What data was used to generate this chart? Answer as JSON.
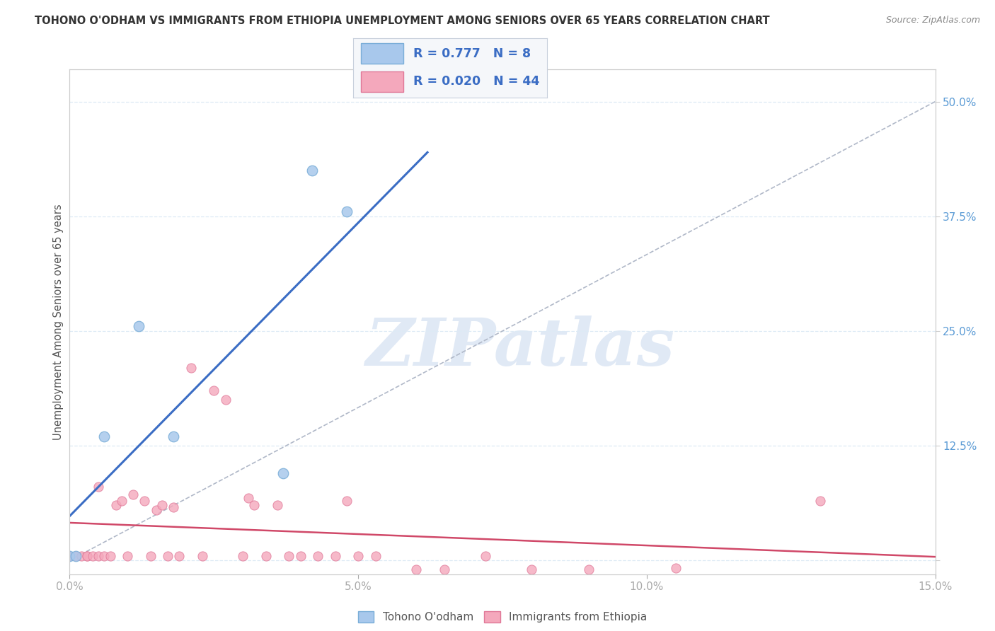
{
  "title": "TOHONO O'ODHAM VS IMMIGRANTS FROM ETHIOPIA UNEMPLOYMENT AMONG SENIORS OVER 65 YEARS CORRELATION CHART",
  "source": "Source: ZipAtlas.com",
  "ylabel": "Unemployment Among Seniors over 65 years",
  "xlim": [
    0.0,
    0.15
  ],
  "ylim": [
    -0.015,
    0.535
  ],
  "xticks": [
    0.0,
    0.05,
    0.1,
    0.15
  ],
  "xticklabels": [
    "0.0%",
    "5.0%",
    "10.0%",
    "15.0%"
  ],
  "yticks": [
    0.0,
    0.125,
    0.25,
    0.375,
    0.5
  ],
  "yticklabels": [
    "",
    "12.5%",
    "25.0%",
    "37.5%",
    "50.0%"
  ],
  "watermark": "ZIPatlas",
  "series1_label": "Tohono O'odham",
  "series1_R": "0.777",
  "series1_N": "8",
  "series1_color": "#A8C8EC",
  "series1_edge": "#7AAED8",
  "series2_label": "Immigrants from Ethiopia",
  "series2_R": "0.020",
  "series2_N": "44",
  "series2_color": "#F4A8BC",
  "series2_edge": "#E07898",
  "title_color": "#333333",
  "axis_label_color": "#5B9BD5",
  "grid_color": "#DDEAF5",
  "trendline1_color": "#3B6DC4",
  "trendline2_color": "#D04868",
  "ref_line_color": "#B0B8C8",
  "series1_x": [
    0.0,
    0.001,
    0.006,
    0.012,
    0.018,
    0.037,
    0.042,
    0.048
  ],
  "series1_y": [
    0.005,
    0.005,
    0.135,
    0.255,
    0.135,
    0.095,
    0.425,
    0.38
  ],
  "series2_x": [
    0.0,
    0.001,
    0.002,
    0.003,
    0.003,
    0.004,
    0.005,
    0.005,
    0.006,
    0.007,
    0.008,
    0.009,
    0.01,
    0.011,
    0.013,
    0.014,
    0.015,
    0.016,
    0.017,
    0.018,
    0.019,
    0.021,
    0.023,
    0.025,
    0.027,
    0.03,
    0.031,
    0.032,
    0.034,
    0.036,
    0.038,
    0.04,
    0.043,
    0.046,
    0.048,
    0.05,
    0.053,
    0.06,
    0.065,
    0.072,
    0.08,
    0.09,
    0.105,
    0.13
  ],
  "series2_y": [
    0.005,
    0.005,
    0.005,
    0.005,
    0.005,
    0.005,
    0.08,
    0.005,
    0.005,
    0.005,
    0.06,
    0.065,
    0.005,
    0.072,
    0.065,
    0.005,
    0.055,
    0.06,
    0.005,
    0.058,
    0.005,
    0.21,
    0.005,
    0.185,
    0.175,
    0.005,
    0.068,
    0.06,
    0.005,
    0.06,
    0.005,
    0.005,
    0.005,
    0.005,
    0.065,
    0.005,
    0.005,
    -0.01,
    -0.01,
    0.005,
    -0.01,
    -0.01,
    -0.008,
    0.065
  ],
  "trendline1_x0": 0.0,
  "trendline1_x1": 0.062,
  "trendline2_x0": 0.0,
  "trendline2_x1": 0.15
}
